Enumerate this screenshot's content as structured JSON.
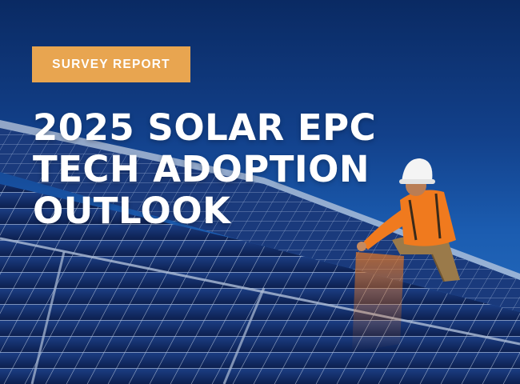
{
  "badge": {
    "label": "SURVEY REPORT",
    "color": "#e8a550"
  },
  "title": {
    "lines": [
      "2025 SOLAR EPC",
      "TECH ADOPTION",
      "OUTLOOK"
    ]
  },
  "colors": {
    "sky_top": "#0a2a63",
    "sky_bottom": "#2a74c6",
    "panel": "#14306d",
    "vest": "#f07a1e",
    "helmet": "#f4f4f4"
  },
  "icons": [
    "solar-panel-array",
    "worker-in-hard-hat"
  ]
}
